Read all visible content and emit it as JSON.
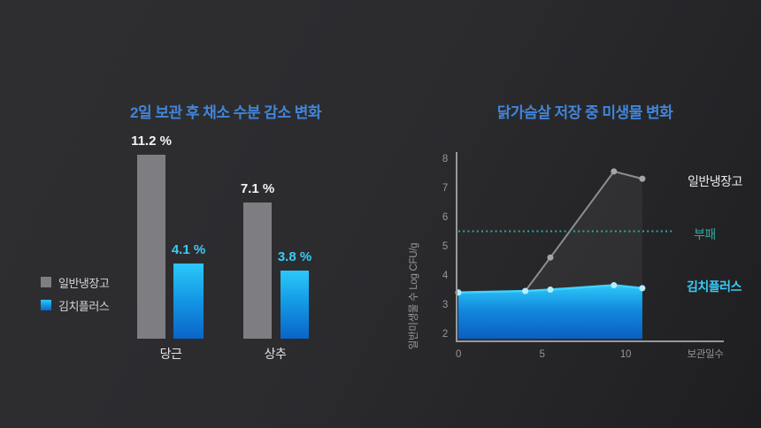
{
  "accent_blue": "#4285d8",
  "chart_data": [
    {
      "type": "bar",
      "title": "2일 보관 후 채소 수분 감소 변화",
      "title_color": "#4285d8",
      "categories": [
        "당근",
        "상추"
      ],
      "value_suffix": " %",
      "ylabel": "",
      "legend_position": "left",
      "series": [
        {
          "name": "일반냉장고",
          "values": [
            11.2,
            7.1
          ],
          "color": "#7e7e82",
          "label_color": "#f4f4f5"
        },
        {
          "name": "김치플러스",
          "values": [
            4.1,
            3.8
          ],
          "color_top": "#2cc8fa",
          "color_bottom": "#0a64c8",
          "label_color": "#38cdf8"
        }
      ]
    },
    {
      "type": "line",
      "title": "닭가슴살 저장 중 미생물 변화",
      "title_color": "#4285d8",
      "xlabel": "보관일수",
      "ylabel": "일반미생물 수 Log CFU/g",
      "xticks": [
        0,
        5,
        10
      ],
      "yticks": [
        2,
        3,
        4,
        5,
        6,
        7,
        8
      ],
      "ylim": [
        2,
        8
      ],
      "xlim": [
        0,
        13
      ],
      "grid": false,
      "series": [
        {
          "name": "일반냉장고",
          "x": [
            0,
            4,
            5.5,
            9.3,
            11
          ],
          "y": [
            3.4,
            3.45,
            4.6,
            7.55,
            7.3
          ],
          "color": "#8d8d91",
          "dot_color": "#a5a5a9",
          "label_color": "#ececee"
        },
        {
          "name": "김치플러스",
          "x": [
            0,
            4,
            5.5,
            9.3,
            11
          ],
          "y": [
            3.4,
            3.45,
            3.5,
            3.65,
            3.55
          ],
          "color": "#41d2ff",
          "dot_color": "#b4eeff",
          "label_color": "#38cdf8"
        }
      ],
      "threshold": {
        "label": "부패",
        "value": 5.5,
        "color": "#2fa99a"
      }
    }
  ]
}
